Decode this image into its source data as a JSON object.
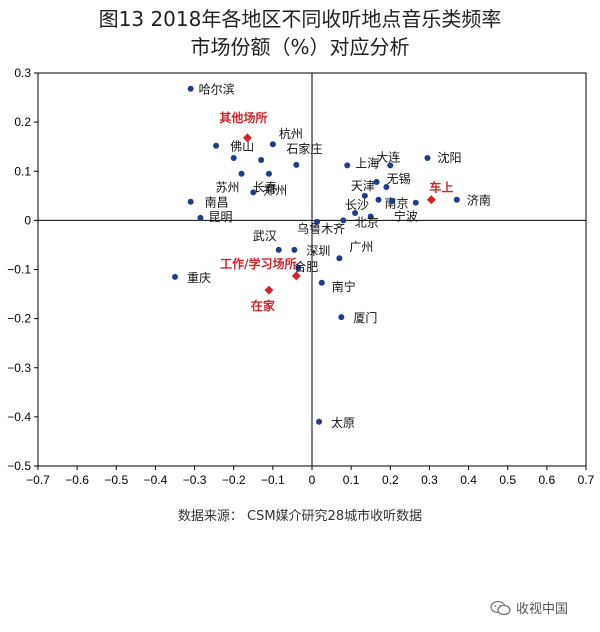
{
  "title_line1": "图13  2018年各地区不同收听地点音乐类频率",
  "title_line2": "市场份额（%）对应分析",
  "source": "数据来源：  CSM媒介研究28城市收听数据",
  "watermark": "收视中国",
  "colors": {
    "city": "#1f3d8a",
    "location": "#d0262b",
    "axis": "#000000"
  },
  "chart_data": {
    "type": "scatter",
    "title": "图13  2018年各地区不同收听地点音乐类频率市场份额（%）对应分析",
    "xlabel": "",
    "ylabel": "",
    "xlim": [
      -0.7,
      0.7
    ],
    "ylim": [
      -0.5,
      0.3
    ],
    "xticks": [
      -0.7,
      -0.6,
      -0.5,
      -0.4,
      -0.3,
      -0.2,
      -0.1,
      0,
      0.1,
      0.2,
      0.3,
      0.4,
      0.5,
      0.6,
      0.7
    ],
    "yticks": [
      -0.5,
      -0.4,
      -0.3,
      -0.2,
      -0.1,
      0,
      0.1,
      0.2,
      0.3
    ],
    "grid": false,
    "series": [
      {
        "points": [
          {
            "label": "哈尔滨",
            "x": -0.31,
            "y": 0.268
          },
          {
            "label": "佛山",
            "x": -0.245,
            "y": 0.152
          },
          {
            "label": "杭州",
            "x": -0.1,
            "y": 0.155
          },
          {
            "label": "",
            "x": -0.2,
            "y": 0.127
          },
          {
            "label": "",
            "x": -0.13,
            "y": 0.123
          },
          {
            "label": "石家庄",
            "x": -0.04,
            "y": 0.113
          },
          {
            "label": "苏州",
            "x": -0.18,
            "y": 0.095
          },
          {
            "label": "长春",
            "x": -0.11,
            "y": 0.095
          },
          {
            "label": "郑州",
            "x": -0.15,
            "y": 0.057
          },
          {
            "label": "上海",
            "x": 0.09,
            "y": 0.112
          },
          {
            "label": "大连",
            "x": 0.2,
            "y": 0.112
          },
          {
            "label": "沈阳",
            "x": 0.295,
            "y": 0.127
          },
          {
            "label": "无锡",
            "x": 0.165,
            "y": 0.078
          },
          {
            "label": "",
            "x": 0.19,
            "y": 0.068
          },
          {
            "label": "天津",
            "x": 0.135,
            "y": 0.05
          },
          {
            "label": "南京",
            "x": 0.17,
            "y": 0.042
          },
          {
            "label": "",
            "x": 0.205,
            "y": 0.04
          },
          {
            "label": "济南",
            "x": 0.37,
            "y": 0.042
          },
          {
            "label": "宁波",
            "x": 0.265,
            "y": 0.036
          },
          {
            "label": "长沙",
            "x": 0.11,
            "y": 0.015
          },
          {
            "label": "北京",
            "x": 0.15,
            "y": 0.008
          },
          {
            "label": "",
            "x": 0.08,
            "y": 0.0
          },
          {
            "label": "乌鲁木齐",
            "x": 0.013,
            "y": -0.003
          },
          {
            "label": "南昌",
            "x": -0.31,
            "y": 0.038
          },
          {
            "label": "昆明",
            "x": -0.285,
            "y": 0.005
          },
          {
            "label": "武汉",
            "x": -0.085,
            "y": -0.06
          },
          {
            "label": "深圳",
            "x": -0.045,
            "y": -0.06
          },
          {
            "label": "广州",
            "x": 0.07,
            "y": -0.077
          },
          {
            "label": "合肥",
            "x": -0.035,
            "y": -0.097
          },
          {
            "label": "南宁",
            "x": 0.025,
            "y": -0.127
          },
          {
            "label": "重庆",
            "x": -0.35,
            "y": -0.115
          },
          {
            "label": "厦门",
            "x": 0.075,
            "y": -0.197
          },
          {
            "label": "太原",
            "x": 0.018,
            "y": -0.41
          }
        ]
      },
      {
        "points": [
          {
            "label": "其他场所",
            "x": -0.165,
            "y": 0.168
          },
          {
            "label": "车上",
            "x": 0.305,
            "y": 0.042
          },
          {
            "label": "工作/学习场所",
            "x": -0.04,
            "y": -0.113
          },
          {
            "label": "在家",
            "x": -0.11,
            "y": -0.142
          }
        ]
      }
    ]
  }
}
